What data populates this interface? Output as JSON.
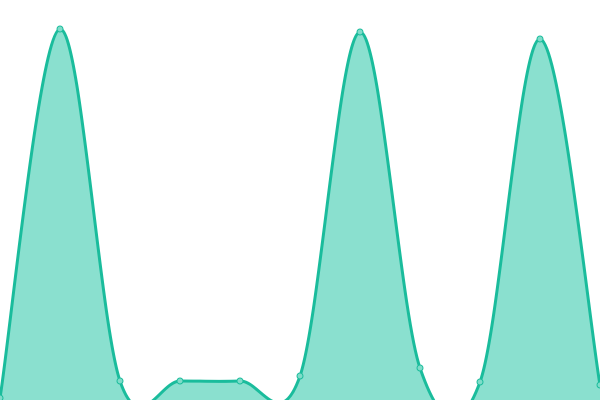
{
  "chart_data": {
    "type": "area",
    "title": "",
    "xlabel": "",
    "ylabel": "",
    "x": [
      0,
      1,
      2,
      3,
      4,
      5,
      6,
      7,
      8,
      9,
      10
    ],
    "series": [
      {
        "values": [
          2,
          371,
          19,
          19,
          19,
          24,
          368,
          32,
          18,
          361,
          15
        ]
      }
    ],
    "ylim": [
      0,
      400
    ],
    "grid": false,
    "axes_visible": false,
    "smooth": true,
    "colors": {
      "line": "#1abc9c",
      "fill": "#8ae0cf",
      "point": "#7fdcc9"
    }
  }
}
